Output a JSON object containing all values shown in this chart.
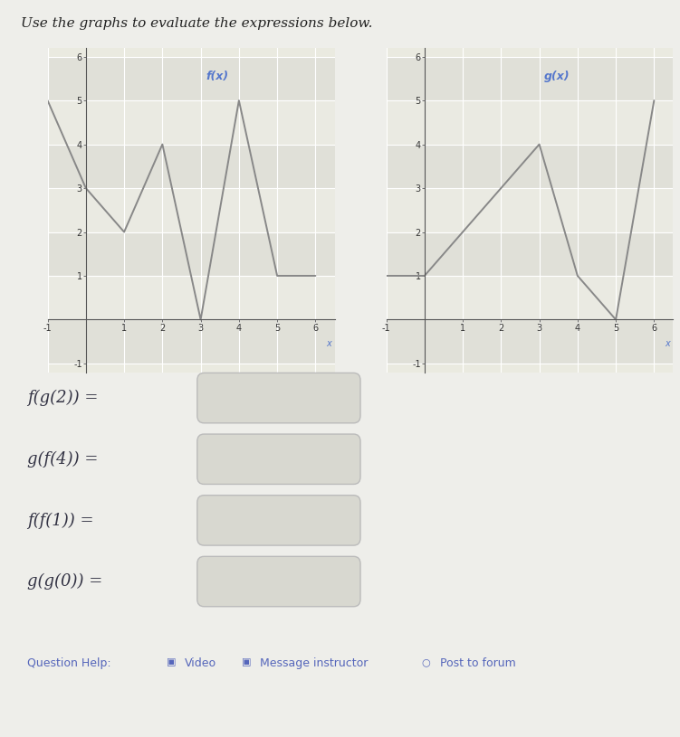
{
  "title": "Use the graphs to evaluate the expressions below.",
  "f_label": "f(x)",
  "g_label": "g(x)",
  "f_x": [
    -1,
    0,
    1,
    2,
    3,
    4,
    5,
    6
  ],
  "f_y": [
    5,
    3,
    2,
    4,
    0,
    5,
    1,
    1
  ],
  "g_x": [
    -1,
    0,
    1,
    2,
    3,
    4,
    5,
    6
  ],
  "g_y": [
    1,
    1,
    2,
    3,
    4,
    1,
    0,
    5
  ],
  "xlim": [
    -1,
    6.5
  ],
  "ylim": [
    -1.2,
    6.2
  ],
  "xticks": [
    -1,
    0,
    1,
    2,
    3,
    4,
    5,
    6
  ],
  "yticks": [
    -1,
    0,
    1,
    2,
    3,
    4,
    5,
    6
  ],
  "line_color": "#888888",
  "label_color": "#5577cc",
  "ax_facecolor": "#eaeae0",
  "fig_facecolor": "#eeeeea",
  "grid_color": "#ffffff",
  "expr_color": "#333344",
  "box_facecolor": "#d8d8d0",
  "box_edgecolor": "#bbbbbb",
  "help_color": "#5566bb",
  "expressions": [
    "f(g(2)) =",
    "g(f(4)) =",
    "f(f(1)) =",
    "g(g(0)) ="
  ],
  "title_fontsize": 11,
  "axis_tick_fontsize": 7,
  "label_fontsize": 9,
  "expr_fontsize": 13,
  "help_fontsize": 9
}
